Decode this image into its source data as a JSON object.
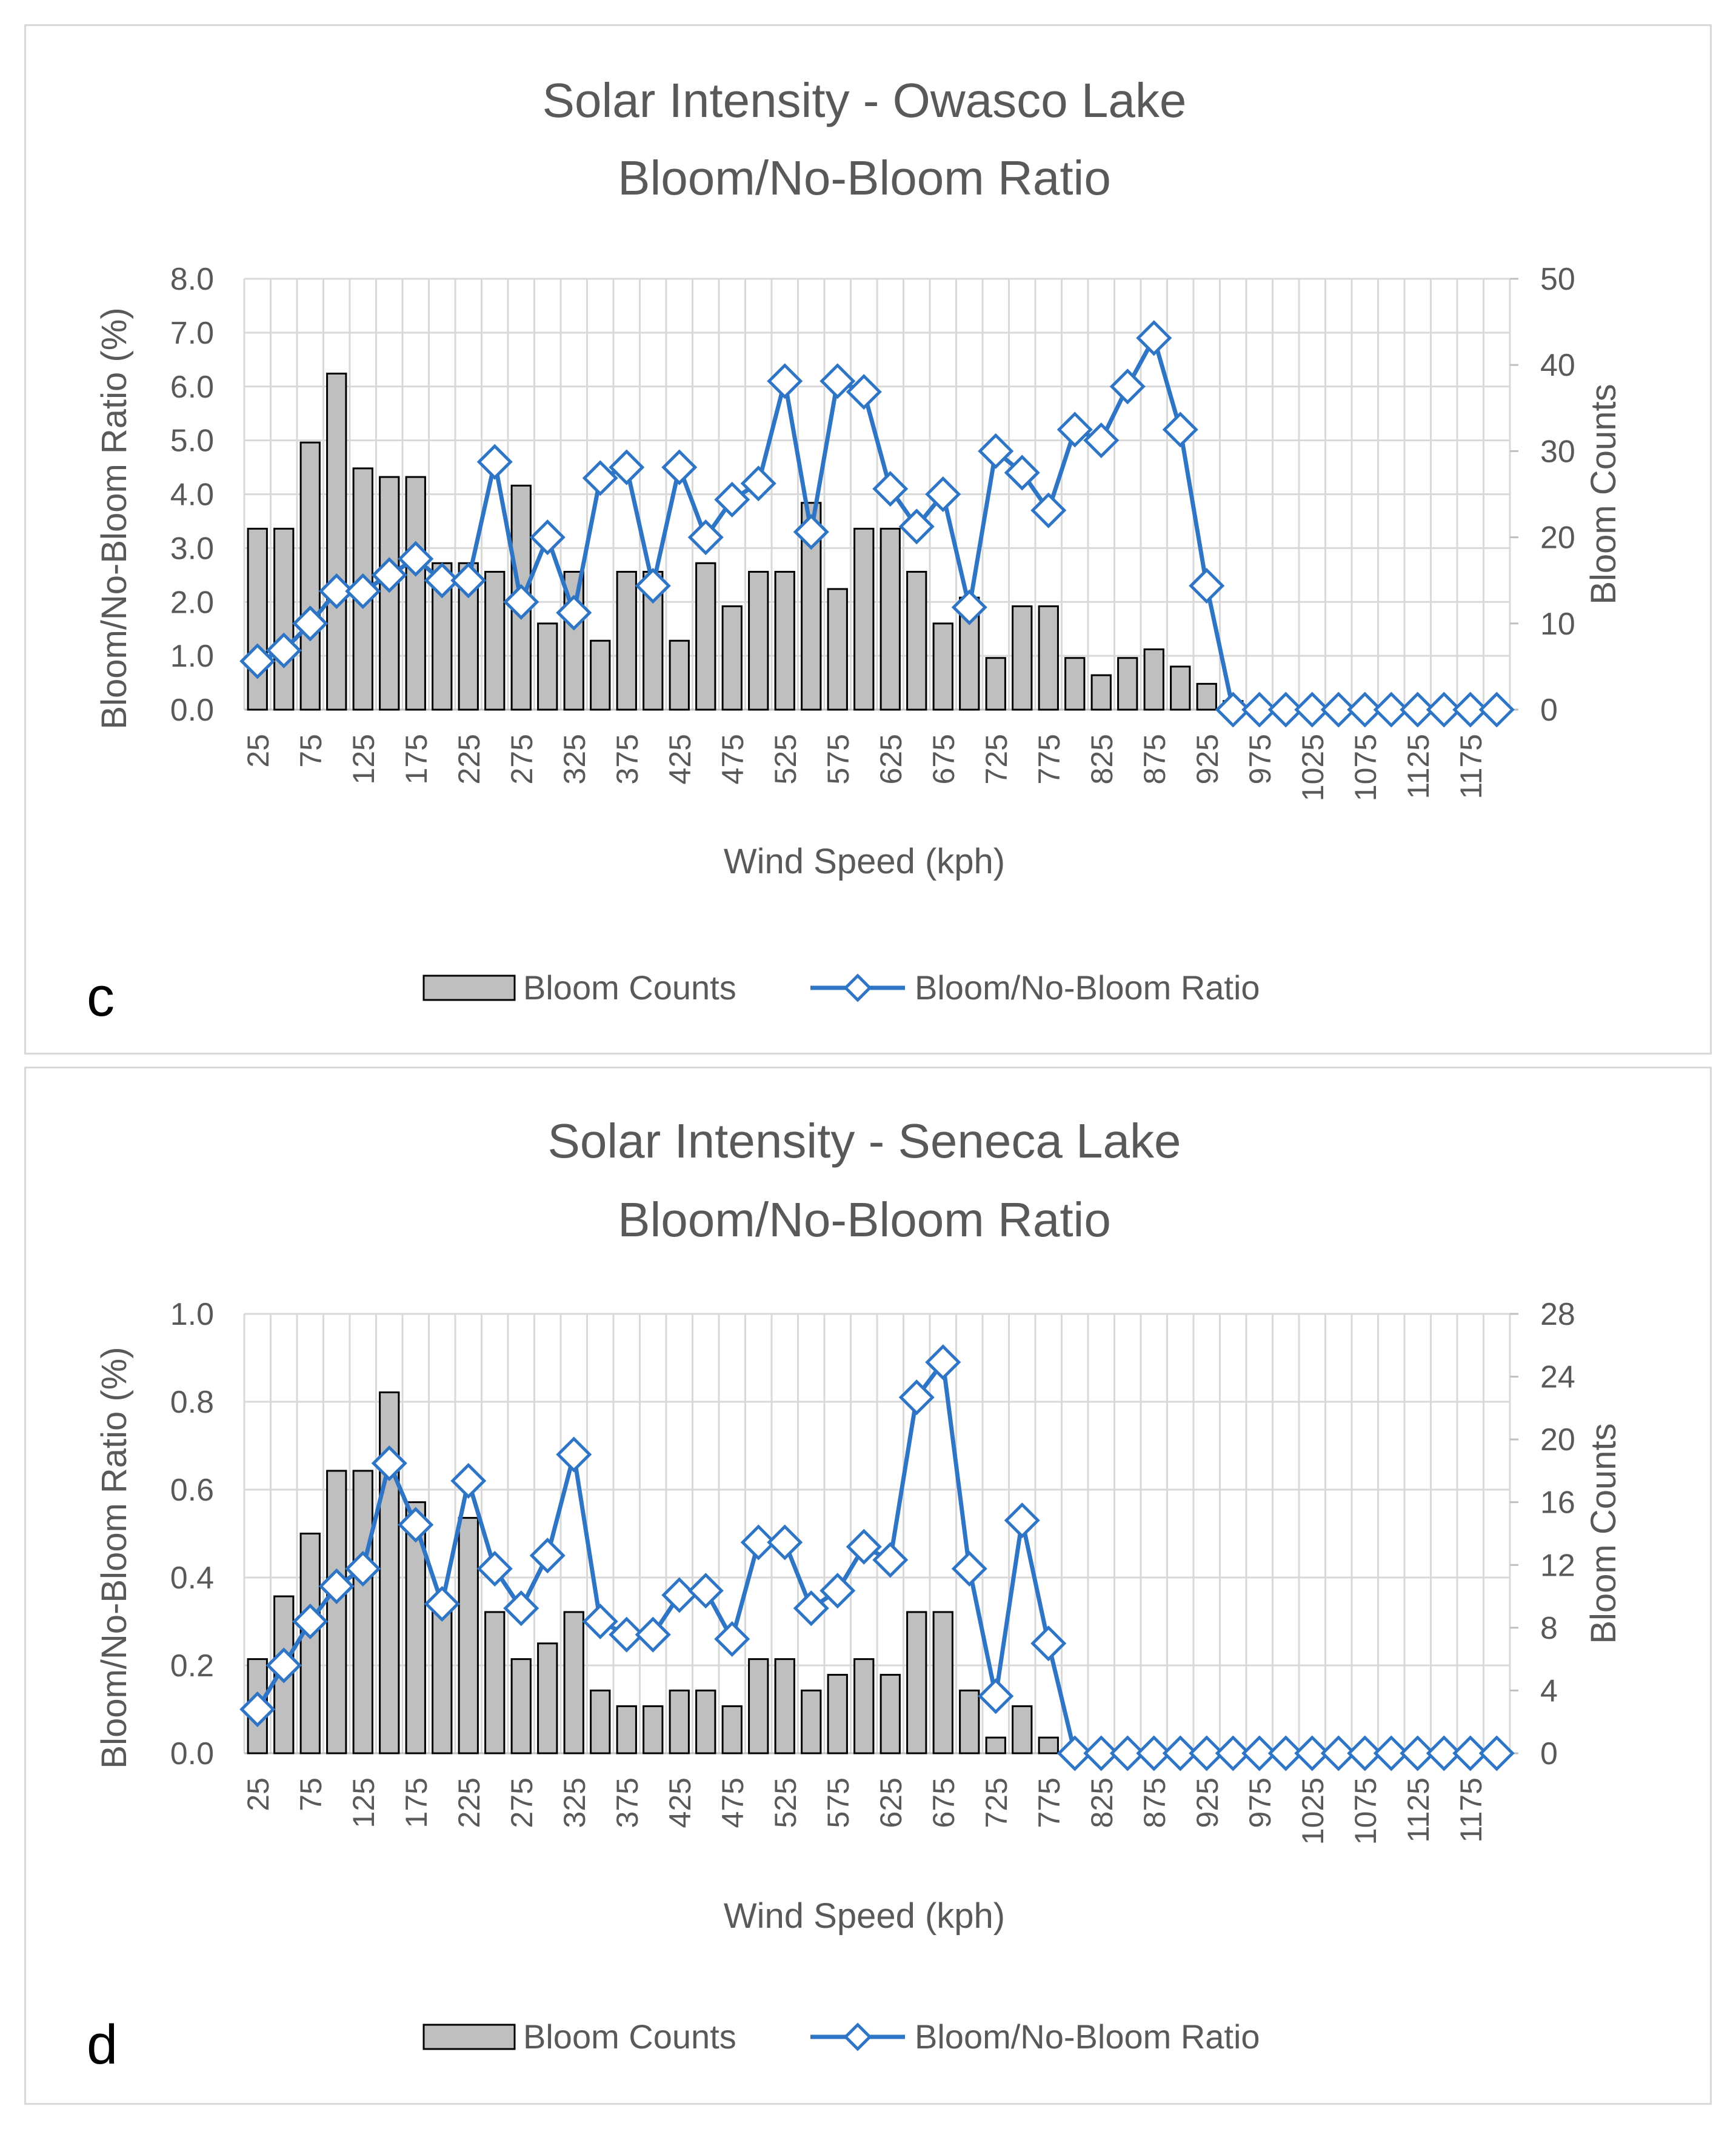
{
  "chart_data": [
    {
      "panel_label": "c",
      "type": "bar",
      "title_line1": "Solar Intensity - Owasco Lake",
      "title_line2": "Bloom/No-Bloom Ratio",
      "xlabel": "Wind Speed (kph)",
      "ylabel_left": "Bloom/No-Bloom Ratio (%)",
      "ylabel_right": "Bloom Counts",
      "ylim_left": [
        0,
        8
      ],
      "ylim_right": [
        0,
        50
      ],
      "left_ticks": [
        "0.0",
        "1.0",
        "2.0",
        "3.0",
        "4.0",
        "5.0",
        "6.0",
        "7.0",
        "8.0"
      ],
      "right_ticks": [
        "0",
        "10",
        "20",
        "30",
        "40",
        "50"
      ],
      "x_tick_labels": [
        "25",
        "75",
        "125",
        "175",
        "225",
        "275",
        "325",
        "375",
        "425",
        "475",
        "525",
        "575",
        "625",
        "675",
        "725",
        "775",
        "825",
        "875",
        "925",
        "975",
        "1025",
        "1075",
        "1125",
        "1175"
      ],
      "legend": [
        "Bloom Counts",
        "Bloom/No-Bloom Ratio"
      ],
      "colors": {
        "bar_fill": "#bfbfbf",
        "bar_stroke": "#000000",
        "line": "#2e75c6",
        "grid": "#d9d9d9"
      },
      "series": [
        {
          "name": "Bloom Counts",
          "axis": "right",
          "values": [
            21,
            21,
            31,
            39,
            28,
            27,
            27,
            17,
            17,
            16,
            26,
            10,
            16,
            8,
            16,
            16,
            8,
            17,
            12,
            16,
            16,
            24,
            14,
            21,
            21,
            16,
            10,
            13,
            6,
            12,
            12,
            6,
            4,
            6,
            7,
            5,
            3,
            1,
            0,
            0,
            0,
            0,
            0,
            0,
            0,
            0,
            0,
            0
          ]
        },
        {
          "name": "Bloom/No-Bloom Ratio",
          "axis": "left",
          "values": [
            0.9,
            1.1,
            1.6,
            2.2,
            2.2,
            2.5,
            2.8,
            2.4,
            2.4,
            4.6,
            2.0,
            3.2,
            1.8,
            4.3,
            4.5,
            2.3,
            4.5,
            3.2,
            3.9,
            4.2,
            6.1,
            3.3,
            6.1,
            5.9,
            4.1,
            3.4,
            4.0,
            1.9,
            4.8,
            4.4,
            3.7,
            5.2,
            5.0,
            6.0,
            6.9,
            5.2,
            2.3,
            0,
            0,
            0,
            0,
            0,
            0,
            0,
            0,
            0,
            0,
            0
          ]
        }
      ]
    },
    {
      "panel_label": "d",
      "type": "bar",
      "title_line1": "Solar Intensity - Seneca Lake",
      "title_line2": "Bloom/No-Bloom Ratio",
      "xlabel": "Wind Speed (kph)",
      "ylabel_left": "Bloom/No-Bloom Ratio (%)",
      "ylabel_right": "Bloom Counts",
      "ylim_left": [
        0,
        1
      ],
      "ylim_right": [
        0,
        28
      ],
      "left_ticks": [
        "0.0",
        "0.2",
        "0.4",
        "0.6",
        "0.8",
        "1.0"
      ],
      "right_ticks": [
        "0",
        "4",
        "8",
        "12",
        "16",
        "20",
        "24",
        "28"
      ],
      "x_tick_labels": [
        "25",
        "75",
        "125",
        "175",
        "225",
        "275",
        "325",
        "375",
        "425",
        "475",
        "525",
        "575",
        "625",
        "675",
        "725",
        "775",
        "825",
        "875",
        "925",
        "975",
        "1025",
        "1075",
        "1125",
        "1175"
      ],
      "legend": [
        "Bloom Counts",
        "Bloom/No-Bloom Ratio"
      ],
      "colors": {
        "bar_fill": "#bfbfbf",
        "bar_stroke": "#000000",
        "line": "#2e75c6",
        "grid": "#d9d9d9"
      },
      "series": [
        {
          "name": "Bloom Counts",
          "axis": "right",
          "values": [
            6,
            10,
            14,
            18,
            18,
            23,
            16,
            9,
            15,
            9,
            6,
            7,
            9,
            4,
            3,
            3,
            4,
            4,
            3,
            6,
            6,
            4,
            5,
            6,
            5,
            9,
            9,
            4,
            1,
            3,
            1,
            0,
            0,
            0,
            0,
            0,
            0,
            0,
            0,
            0,
            0,
            0,
            0,
            0,
            0,
            0,
            0,
            0
          ]
        },
        {
          "name": "Bloom/No-Bloom Ratio",
          "axis": "left",
          "values": [
            0.1,
            0.2,
            0.3,
            0.38,
            0.42,
            0.66,
            0.52,
            0.34,
            0.62,
            0.42,
            0.33,
            0.45,
            0.68,
            0.3,
            0.27,
            0.27,
            0.36,
            0.37,
            0.26,
            0.48,
            0.48,
            0.33,
            0.37,
            0.47,
            0.44,
            0.81,
            0.89,
            0.42,
            0.13,
            0.53,
            0.25,
            0,
            0,
            0,
            0,
            0,
            0,
            0,
            0,
            0,
            0,
            0,
            0,
            0,
            0,
            0,
            0,
            0
          ]
        }
      ]
    }
  ]
}
